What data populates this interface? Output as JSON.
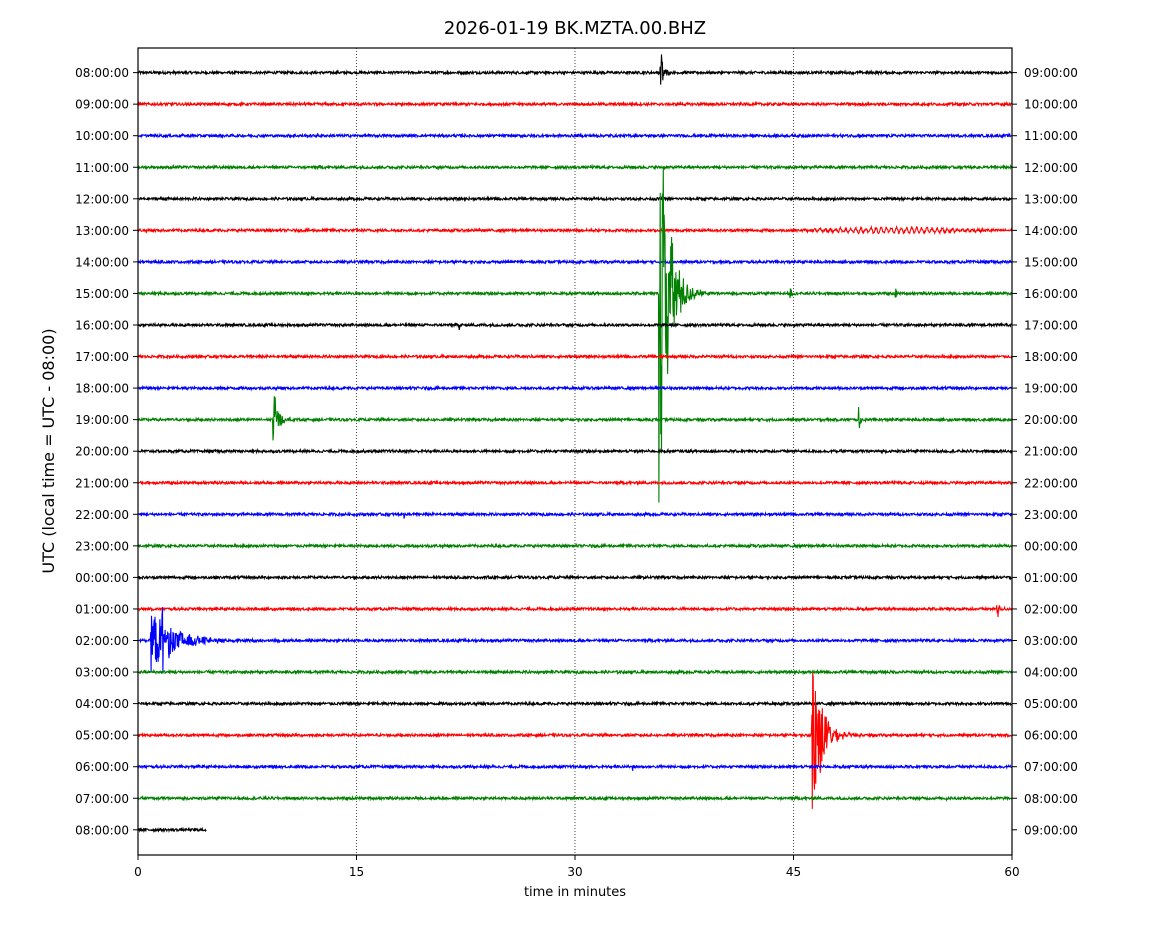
{
  "chart_data": {
    "type": "line",
    "title": "2026-01-19 BK.MZTA.00.BHZ",
    "xlabel": "time in minutes",
    "ylabel": "UTC (local time = UTC - 08:00)",
    "xlim": [
      0,
      60
    ],
    "x_ticks": [
      0,
      15,
      30,
      45,
      60
    ],
    "x_tick_labels": [
      "0",
      "15",
      "30",
      "45",
      "60"
    ],
    "grid": "vertical dotted lines at 15, 30, 45",
    "trace_colors": [
      "#000000",
      "#ff0000",
      "#0000ff",
      "#008000"
    ],
    "left_labels": [
      "08:00:00",
      "09:00:00",
      "10:00:00",
      "11:00:00",
      "12:00:00",
      "13:00:00",
      "14:00:00",
      "15:00:00",
      "16:00:00",
      "17:00:00",
      "18:00:00",
      "19:00:00",
      "20:00:00",
      "21:00:00",
      "22:00:00",
      "23:00:00",
      "00:00:00",
      "01:00:00",
      "02:00:00",
      "03:00:00",
      "04:00:00",
      "05:00:00",
      "06:00:00",
      "07:00:00",
      "08:00:00"
    ],
    "right_labels": [
      "09:00:00",
      "10:00:00",
      "11:00:00",
      "12:00:00",
      "13:00:00",
      "14:00:00",
      "15:00:00",
      "16:00:00",
      "17:00:00",
      "18:00:00",
      "19:00:00",
      "20:00:00",
      "21:00:00",
      "22:00:00",
      "23:00:00",
      "00:00:00",
      "01:00:00",
      "02:00:00",
      "03:00:00",
      "04:00:00",
      "05:00:00",
      "06:00:00",
      "07:00:00",
      "08:00:00",
      "09:00:00"
    ],
    "last_trace_end_minute": 4.7,
    "events": [
      {
        "trace": 0,
        "minute": 35.9,
        "amplitude_rows": 0.9,
        "duration_min": 1.0,
        "note": "large spike, clipped at top"
      },
      {
        "trace": 5,
        "minute": 45.0,
        "amplitude_rows": 0.08,
        "duration_min": 14.0,
        "note": "low-amplitude long-period wave"
      },
      {
        "trace": 7,
        "minute": 35.8,
        "amplitude_rows": 7.0,
        "duration_min": 3.5,
        "note": "large earthquake"
      },
      {
        "trace": 7,
        "minute": 44.8,
        "amplitude_rows": 0.2,
        "duration_min": 0.5
      },
      {
        "trace": 7,
        "minute": 52.0,
        "amplitude_rows": 0.2,
        "duration_min": 0.5
      },
      {
        "trace": 8,
        "minute": 22.1,
        "amplitude_rows": 0.15,
        "duration_min": 0.4
      },
      {
        "trace": 11,
        "minute": 9.3,
        "amplitude_rows": 1.1,
        "duration_min": 1.5
      },
      {
        "trace": 11,
        "minute": 49.5,
        "amplitude_rows": 0.4,
        "duration_min": 0.6
      },
      {
        "trace": 14,
        "minute": 18.3,
        "amplitude_rows": 0.12,
        "duration_min": 0.3
      },
      {
        "trace": 17,
        "minute": 59.0,
        "amplitude_rows": 0.3,
        "duration_min": 1.0
      },
      {
        "trace": 18,
        "minute": 0.9,
        "amplitude_rows": 1.0,
        "duration_min": 9.0,
        "note": "earthquake with long coda"
      },
      {
        "trace": 18,
        "minute": 1.6,
        "amplitude_rows": 0.9,
        "duration_min": 1.5
      },
      {
        "trace": 21,
        "minute": 46.3,
        "amplitude_rows": 2.9,
        "duration_min": 3.5,
        "note": "earthquake"
      },
      {
        "trace": 22,
        "minute": 34.0,
        "amplitude_rows": 0.12,
        "duration_min": 0.3
      },
      {
        "trace": 23,
        "minute": 55.5,
        "amplitude_rows": 0.1,
        "duration_min": 0.3
      }
    ]
  }
}
